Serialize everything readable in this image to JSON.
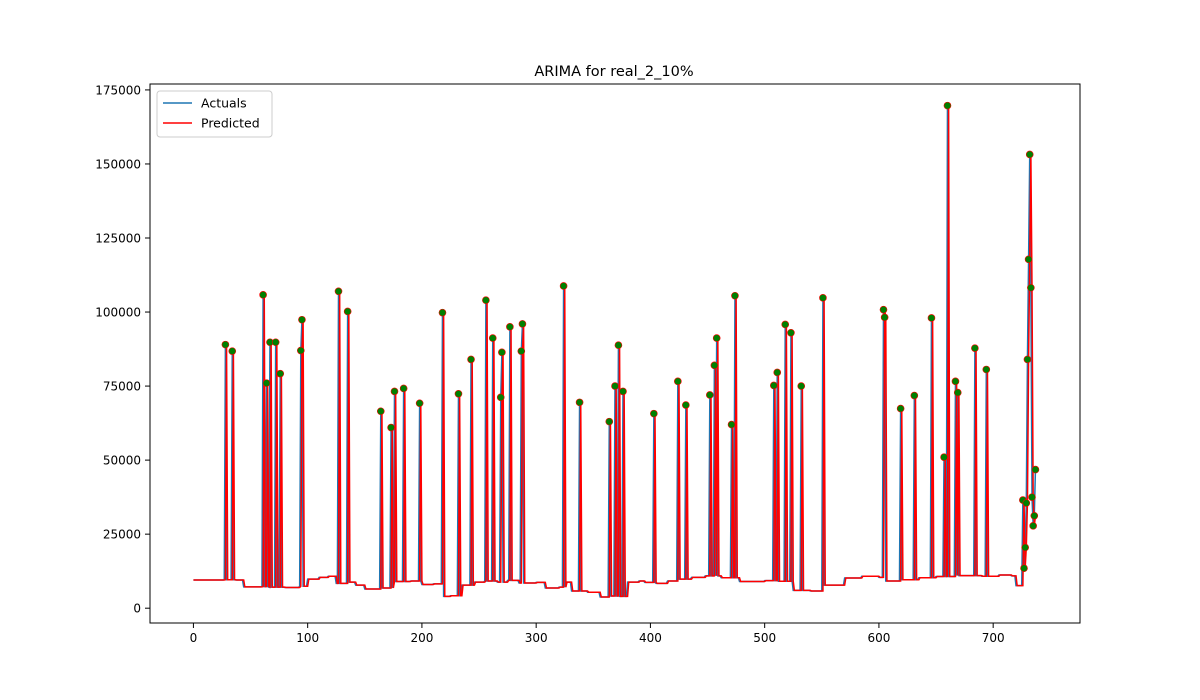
{
  "chart_data": {
    "type": "line",
    "title": "ARIMA for real_2_10%",
    "xlabel": "",
    "ylabel": "",
    "xlim": [
      -38,
      776
    ],
    "ylim": [
      -5000,
      177000
    ],
    "xticks": [
      0,
      100,
      200,
      300,
      400,
      500,
      600,
      700
    ],
    "yticks": [
      0,
      25000,
      50000,
      75000,
      100000,
      125000,
      150000,
      175000
    ],
    "ytick_labels": [
      "0",
      "25000",
      "50000",
      "75000",
      "100000",
      "125000",
      "150000",
      "175000"
    ],
    "grid": false,
    "legend_position": "top-left",
    "series": [
      {
        "name": "Actuals",
        "color": "#1f77b4"
      },
      {
        "name": "Predicted",
        "color": "#ff0000"
      }
    ],
    "baseline_segments": [
      [
        0,
        9500
      ],
      [
        27,
        9600
      ],
      [
        37,
        9500
      ],
      [
        44,
        7200
      ],
      [
        60,
        7300
      ],
      [
        66,
        7100
      ],
      [
        80,
        7000
      ],
      [
        93,
        7400
      ],
      [
        100,
        9800
      ],
      [
        110,
        10400
      ],
      [
        118,
        10800
      ],
      [
        125,
        8400
      ],
      [
        135,
        8800
      ],
      [
        142,
        7800
      ],
      [
        150,
        6500
      ],
      [
        165,
        6800
      ],
      [
        175,
        9000
      ],
      [
        190,
        9200
      ],
      [
        200,
        8000
      ],
      [
        210,
        8200
      ],
      [
        218,
        4000
      ],
      [
        225,
        4200
      ],
      [
        235,
        7800
      ],
      [
        246,
        8800
      ],
      [
        255,
        9200
      ],
      [
        266,
        8800
      ],
      [
        275,
        9400
      ],
      [
        285,
        8500
      ],
      [
        300,
        8700
      ],
      [
        308,
        6800
      ],
      [
        320,
        7100
      ],
      [
        326,
        8800
      ],
      [
        331,
        5800
      ],
      [
        345,
        5400
      ],
      [
        356,
        3800
      ],
      [
        365,
        4100
      ],
      [
        372,
        4000
      ],
      [
        380,
        8800
      ],
      [
        390,
        9200
      ],
      [
        395,
        8700
      ],
      [
        405,
        8400
      ],
      [
        415,
        9200
      ],
      [
        425,
        9800
      ],
      [
        436,
        10400
      ],
      [
        448,
        10900
      ],
      [
        462,
        10300
      ],
      [
        478,
        9000
      ],
      [
        500,
        9300
      ],
      [
        512,
        9100
      ],
      [
        525,
        6000
      ],
      [
        540,
        5800
      ],
      [
        552,
        7800
      ],
      [
        570,
        10200
      ],
      [
        585,
        10800
      ],
      [
        600,
        10400
      ],
      [
        606,
        9200
      ],
      [
        620,
        9600
      ],
      [
        635,
        10300
      ],
      [
        650,
        10700
      ],
      [
        668,
        11000
      ],
      [
        690,
        10800
      ],
      [
        705,
        11200
      ],
      [
        716,
        10900
      ],
      [
        720,
        7600
      ],
      [
        728,
        9000
      ],
      [
        730,
        16000
      ],
      [
        740,
        16000
      ]
    ],
    "spikes": [
      {
        "x": 28,
        "y": 89000
      },
      {
        "x": 34,
        "y": 86800
      },
      {
        "x": 61,
        "y": 105800
      },
      {
        "x": 64,
        "y": 76000
      },
      {
        "x": 67,
        "y": 89800
      },
      {
        "x": 72,
        "y": 89800
      },
      {
        "x": 76,
        "y": 79200
      },
      {
        "x": 94,
        "y": 87000
      },
      {
        "x": 95,
        "y": 97400
      },
      {
        "x": 127,
        "y": 107000
      },
      {
        "x": 135,
        "y": 100200
      },
      {
        "x": 164,
        "y": 66500
      },
      {
        "x": 173,
        "y": 61000
      },
      {
        "x": 176,
        "y": 73200
      },
      {
        "x": 184,
        "y": 74200
      },
      {
        "x": 198,
        "y": 69200
      },
      {
        "x": 218,
        "y": 99800
      },
      {
        "x": 232,
        "y": 72400
      },
      {
        "x": 243,
        "y": 84000
      },
      {
        "x": 256,
        "y": 104000
      },
      {
        "x": 262,
        "y": 91200
      },
      {
        "x": 269,
        "y": 71200
      },
      {
        "x": 270,
        "y": 86400
      },
      {
        "x": 277,
        "y": 95000
      },
      {
        "x": 287,
        "y": 86800
      },
      {
        "x": 288,
        "y": 96000
      },
      {
        "x": 324,
        "y": 108800
      },
      {
        "x": 338,
        "y": 69500
      },
      {
        "x": 364,
        "y": 63000
      },
      {
        "x": 369,
        "y": 75000
      },
      {
        "x": 372,
        "y": 88800
      },
      {
        "x": 376,
        "y": 73200
      },
      {
        "x": 403,
        "y": 65700
      },
      {
        "x": 424,
        "y": 76600
      },
      {
        "x": 431,
        "y": 68600
      },
      {
        "x": 452,
        "y": 72000
      },
      {
        "x": 456,
        "y": 82000
      },
      {
        "x": 458,
        "y": 91200
      },
      {
        "x": 471,
        "y": 62000
      },
      {
        "x": 474,
        "y": 105500
      },
      {
        "x": 508,
        "y": 75200
      },
      {
        "x": 511,
        "y": 79600
      },
      {
        "x": 518,
        "y": 95800
      },
      {
        "x": 523,
        "y": 93000
      },
      {
        "x": 532,
        "y": 75000
      },
      {
        "x": 551,
        "y": 104800
      },
      {
        "x": 604,
        "y": 100800
      },
      {
        "x": 605,
        "y": 98200
      },
      {
        "x": 619,
        "y": 67400
      },
      {
        "x": 631,
        "y": 71800
      },
      {
        "x": 646,
        "y": 98000
      },
      {
        "x": 657,
        "y": 51000
      },
      {
        "x": 660,
        "y": 169700
      },
      {
        "x": 667,
        "y": 76600
      },
      {
        "x": 669,
        "y": 72800
      },
      {
        "x": 684,
        "y": 87800
      },
      {
        "x": 694,
        "y": 80600
      }
    ],
    "tail": [
      {
        "x": 726,
        "y": 36500
      },
      {
        "x": 727,
        "y": 13500
      },
      {
        "x": 728,
        "y": 20500
      },
      {
        "x": 729,
        "y": 35500
      },
      {
        "x": 730,
        "y": 84000
      },
      {
        "x": 731,
        "y": 117800
      },
      {
        "x": 732,
        "y": 153200
      },
      {
        "x": 733,
        "y": 108200
      },
      {
        "x": 734,
        "y": 37500
      },
      {
        "x": 735,
        "y": 27800
      },
      {
        "x": 736,
        "y": 31200
      },
      {
        "x": 737,
        "y": 46800
      }
    ]
  }
}
